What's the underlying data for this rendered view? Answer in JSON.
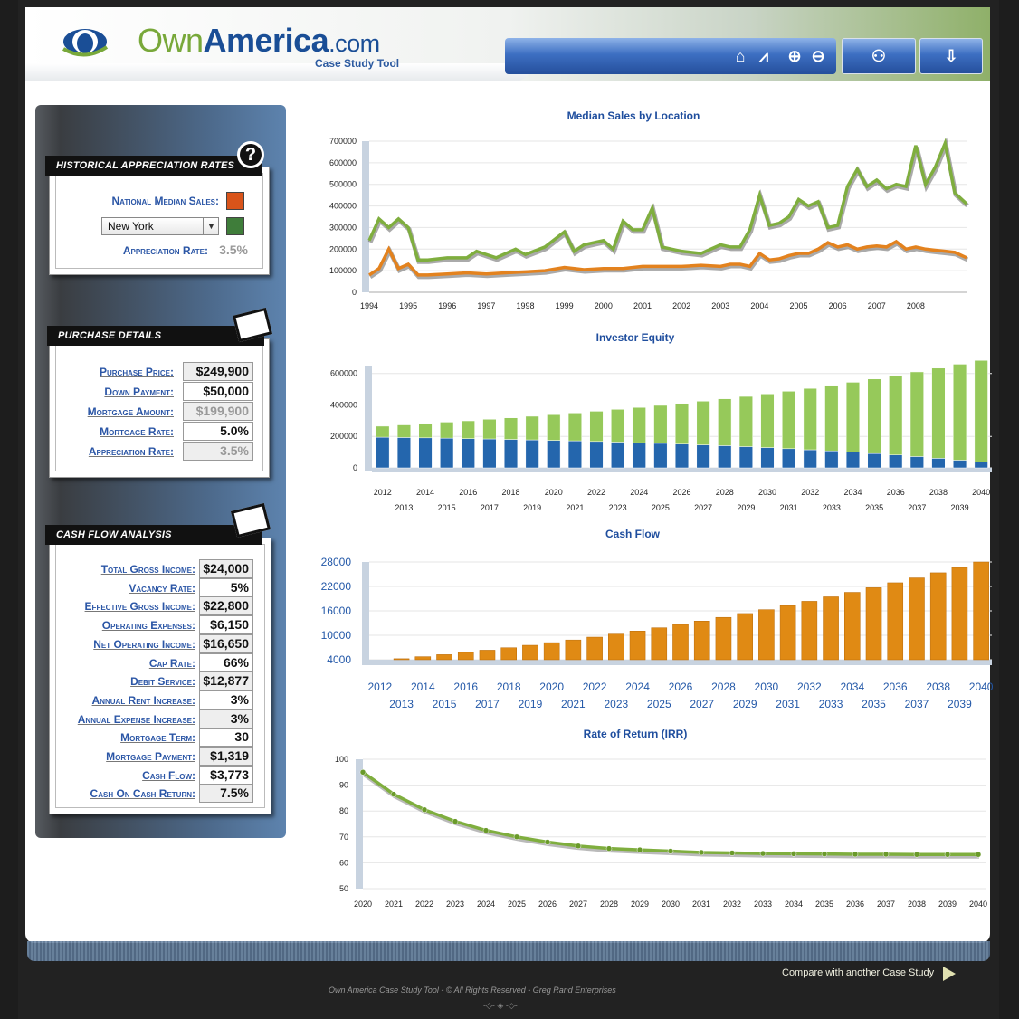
{
  "header": {
    "logo_own": "Own",
    "logo_america": "America",
    "logo_dotcom": ".com",
    "subtitle": "Case Study Tool",
    "toolbar_icons": [
      "home-icon",
      "chart-icon",
      "zoom-in-icon",
      "zoom-out-icon",
      "presentation-icon",
      "report-download-icon"
    ]
  },
  "historical": {
    "title": "Historical Appreciation Rates",
    "national_label": "National Median Sales:",
    "national_color": "#d9541a",
    "city_selected": "New York",
    "city_color": "#3f7d3a",
    "rate_label": "Appreciation Rate:",
    "rate_value": "3.5%"
  },
  "purchase": {
    "title": "Purchase Details",
    "rows": [
      {
        "label": "Purchase Price:",
        "value": "$249,900",
        "style": "shade"
      },
      {
        "label": "Down Payment:",
        "value": "$50,000",
        "style": ""
      },
      {
        "label": "Mortgage Amount:",
        "value": "$199,900",
        "style": "gray"
      },
      {
        "label": "Mortgage Rate:",
        "value": "5.0%",
        "style": ""
      },
      {
        "label": "Appreciation Rate:",
        "value": "3.5%",
        "style": "gray"
      }
    ]
  },
  "cashflow": {
    "title": "Cash Flow Analysis",
    "rows": [
      {
        "label": "Total Gross Income:",
        "value": "$24,000",
        "style": "shade"
      },
      {
        "label": "Vacancy Rate:",
        "value": "5%",
        "style": ""
      },
      {
        "label": "Effective Gross Income:",
        "value": "$22,800",
        "style": "shade"
      },
      {
        "label": "Operating Expenses:",
        "value": "$6,150",
        "style": ""
      },
      {
        "label": "Net Operating Income:",
        "value": "$16,650",
        "style": "shade"
      },
      {
        "label": "Cap Rate:",
        "value": "66%",
        "style": ""
      },
      {
        "label": "Debit Service:",
        "value": "$12,877",
        "style": "shade"
      },
      {
        "label": "Annual Rent Increase:",
        "value": "3%",
        "style": ""
      },
      {
        "label": "Annual Expense Increase:",
        "value": "3%",
        "style": "shade"
      },
      {
        "label": "Mortgage Term:",
        "value": "30",
        "style": ""
      },
      {
        "label": "Mortgage Payment:",
        "value": "$1,319",
        "style": "shade"
      },
      {
        "label": "Cash Flow:",
        "value": "$3,773",
        "style": ""
      },
      {
        "label": "Cash On Cash Return:",
        "value": "7.5%",
        "style": "shade"
      }
    ]
  },
  "footer": {
    "compare": "Compare with another Case  Study",
    "copyright": "Own America Case Study Tool - © All Rights Reserved - Greg Rand Enterprises",
    "ornament": "-◇- ◈ -◇-"
  },
  "chart_data": [
    {
      "type": "line",
      "title": "Median Sales by Location",
      "ylim": [
        0,
        700000
      ],
      "yticks": [
        "0",
        "100000",
        "200000",
        "300000",
        "400000",
        "500000",
        "600000",
        "700000"
      ],
      "xticks": [
        "1994",
        "1995",
        "1996",
        "1997",
        "1998",
        "1999",
        "2000",
        "2001",
        "2002",
        "2003",
        "2004",
        "2005",
        "2006",
        "2007",
        "2008"
      ],
      "xlim": [
        1994,
        2009.3
      ],
      "series": [
        {
          "color": "#7fae3e",
          "x": [
            1994,
            1994.25,
            1994.5,
            1994.75,
            1995,
            1995.25,
            1995.5,
            1996,
            1996.5,
            1996.75,
            1997,
            1997.25,
            1997.5,
            1997.75,
            1998,
            1998.5,
            1999,
            1999.25,
            1999.5,
            2000,
            2000.25,
            2000.5,
            2000.75,
            2001,
            2001.25,
            2001.5,
            2002,
            2002.5,
            2002.75,
            2003,
            2003.25,
            2003.5,
            2003.75,
            2004,
            2004.25,
            2004.5,
            2004.75,
            2005,
            2005.25,
            2005.5,
            2005.75,
            2006,
            2006.25,
            2006.5,
            2006.75,
            2007,
            2007.25,
            2007.5,
            2007.75,
            2008,
            2008.25,
            2008.5,
            2008.75,
            2009,
            2009.3
          ],
          "y": [
            240000,
            340000,
            300000,
            340000,
            300000,
            150000,
            150000,
            160000,
            160000,
            190000,
            175000,
            160000,
            180000,
            200000,
            175000,
            210000,
            280000,
            190000,
            220000,
            240000,
            200000,
            330000,
            290000,
            290000,
            390000,
            210000,
            190000,
            180000,
            200000,
            220000,
            210000,
            210000,
            290000,
            450000,
            310000,
            320000,
            350000,
            430000,
            400000,
            420000,
            300000,
            310000,
            490000,
            570000,
            490000,
            520000,
            480000,
            500000,
            490000,
            680000,
            500000,
            580000,
            690000,
            460000,
            410000
          ]
        },
        {
          "color": "#e3821e",
          "x": [
            1994,
            1994.25,
            1994.5,
            1994.75,
            1995,
            1995.25,
            1995.5,
            1996,
            1996.5,
            1997,
            1997.5,
            1998,
            1998.5,
            1999,
            1999.5,
            2000,
            2000.5,
            2001,
            2001.5,
            2002,
            2002.5,
            2003,
            2003.25,
            2003.5,
            2003.75,
            2004,
            2004.25,
            2004.5,
            2004.75,
            2005,
            2005.25,
            2005.5,
            2005.75,
            2006,
            2006.25,
            2006.5,
            2006.75,
            2007,
            2007.25,
            2007.5,
            2007.75,
            2008,
            2008.25,
            2008.5,
            2008.75,
            2009,
            2009.3
          ],
          "y": [
            80000,
            110000,
            200000,
            110000,
            130000,
            80000,
            80000,
            85000,
            90000,
            85000,
            90000,
            95000,
            100000,
            115000,
            105000,
            110000,
            110000,
            120000,
            120000,
            120000,
            125000,
            120000,
            130000,
            130000,
            120000,
            180000,
            150000,
            155000,
            170000,
            180000,
            180000,
            200000,
            230000,
            210000,
            220000,
            200000,
            210000,
            215000,
            210000,
            235000,
            200000,
            210000,
            200000,
            195000,
            190000,
            185000,
            160000
          ]
        }
      ]
    },
    {
      "type": "bar",
      "title": "Investor Equity",
      "ylim": [
        0,
        650000
      ],
      "yticks": [
        "0",
        "200000",
        "400000",
        "600000"
      ],
      "categories": [
        "2012",
        "2013",
        "2014",
        "2015",
        "2016",
        "2017",
        "2018",
        "2019",
        "2020",
        "2021",
        "2022",
        "2023",
        "2024",
        "2025",
        "2026",
        "2027",
        "2028",
        "2029",
        "2030",
        "2031",
        "2032",
        "2033",
        "2034",
        "2035",
        "2036",
        "2037",
        "2038",
        "2039",
        "2040"
      ],
      "series": [
        {
          "color": "#2466ad",
          "values": [
            195000,
            193000,
            191000,
            189000,
            186000,
            184000,
            181000,
            178000,
            175000,
            172000,
            168000,
            164000,
            160000,
            156000,
            151000,
            146000,
            141000,
            135000,
            129000,
            122000,
            115000,
            108000,
            100000,
            91000,
            82000,
            72000,
            61000,
            49000,
            37000
          ]
        },
        {
          "color": "#96c95a",
          "values": [
            70000,
            80000,
            91000,
            102000,
            113000,
            125000,
            137000,
            150000,
            163000,
            177000,
            192000,
            208000,
            224000,
            241000,
            259000,
            278000,
            298000,
            319000,
            341000,
            365000,
            390000,
            416000,
            444000,
            474000,
            505000,
            538000,
            573000,
            610000,
            646000
          ]
        }
      ]
    },
    {
      "type": "bar",
      "title": "Cash Flow",
      "ylim": [
        2000,
        28000
      ],
      "yticks": [
        "4000",
        "10000",
        "16000",
        "22000",
        "28000"
      ],
      "categories": [
        "2012",
        "2013",
        "2014",
        "2015",
        "2016",
        "2017",
        "2018",
        "2019",
        "2020",
        "2021",
        "2022",
        "2023",
        "2024",
        "2025",
        "2026",
        "2027",
        "2028",
        "2029",
        "2030",
        "2031",
        "2032",
        "2033",
        "2034",
        "2035",
        "2036",
        "2037",
        "2038",
        "2039",
        "2040"
      ],
      "series": [
        {
          "color": "#e08a14",
          "values": [
            3773,
            4250,
            4750,
            5250,
            5800,
            6350,
            6950,
            7550,
            8200,
            8850,
            9550,
            10300,
            11050,
            11850,
            12650,
            13500,
            14400,
            15350,
            16300,
            17300,
            18350,
            19450,
            20550,
            21700,
            22900,
            24100,
            25350,
            26650,
            28000
          ]
        }
      ]
    },
    {
      "type": "line",
      "title": "Rate of Return (IRR)",
      "ylim": [
        50,
        100
      ],
      "yticks": [
        "50",
        "60",
        "70",
        "80",
        "90",
        "100"
      ],
      "categories": [
        "2020",
        "2021",
        "2022",
        "2023",
        "2024",
        "2025",
        "2026",
        "2027",
        "2028",
        "2029",
        "2030",
        "2031",
        "2032",
        "2033",
        "2034",
        "2035",
        "2036",
        "2037",
        "2038",
        "2039",
        "2040"
      ],
      "series": [
        {
          "color": "#7fae3e",
          "values": [
            95,
            86.5,
            80.5,
            76,
            72.5,
            70,
            68,
            66.5,
            65.5,
            65,
            64.5,
            64,
            63.8,
            63.6,
            63.5,
            63.4,
            63.3,
            63.3,
            63.2,
            63.2,
            63.2
          ]
        }
      ]
    }
  ]
}
